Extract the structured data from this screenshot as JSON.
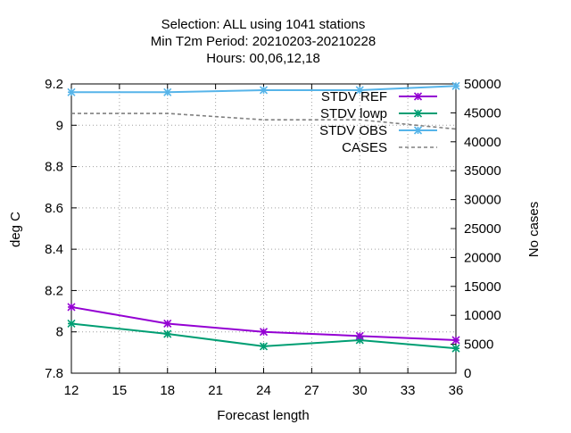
{
  "chart_data": {
    "type": "line",
    "title_lines": [
      "Selection: ALL using  1041 stations",
      "Min T2m   Period: 20210203-20210228",
      "Hours:  00,06,12,18"
    ],
    "xlabel": "Forecast length",
    "ylabel": "deg C",
    "y2label": "No cases",
    "x": [
      12,
      18,
      24,
      30,
      36
    ],
    "xlim": [
      12,
      36
    ],
    "xticks": [
      12,
      15,
      18,
      21,
      24,
      27,
      30,
      33,
      36
    ],
    "ylim": [
      7.8,
      9.2
    ],
    "yticks": [
      7.8,
      8,
      8.2,
      8.4,
      8.6,
      8.8,
      9,
      9.2
    ],
    "y2lim": [
      0,
      50000
    ],
    "y2ticks": [
      0,
      5000,
      10000,
      15000,
      20000,
      25000,
      30000,
      35000,
      40000,
      45000,
      50000
    ],
    "grid": true,
    "legend_position": "top-right",
    "series": [
      {
        "name": "STDV REF",
        "axis": "y",
        "color": "#9400d3",
        "marker": "star",
        "dash": "solid",
        "values": [
          8.12,
          8.04,
          8.0,
          7.98,
          7.96
        ]
      },
      {
        "name": "STDV lowp",
        "axis": "y",
        "color": "#009e73",
        "marker": "star",
        "dash": "solid",
        "values": [
          8.04,
          7.99,
          7.93,
          7.96,
          7.92
        ]
      },
      {
        "name": "STDV OBS",
        "axis": "y",
        "color": "#56b4e9",
        "marker": "star",
        "dash": "solid",
        "values": [
          9.16,
          9.16,
          9.17,
          9.17,
          9.19
        ]
      },
      {
        "name": "CASES",
        "axis": "y2",
        "color": "#808080",
        "marker": "none",
        "dash": "dashed",
        "values": [
          44900,
          44900,
          43800,
          43800,
          42200
        ]
      }
    ]
  }
}
